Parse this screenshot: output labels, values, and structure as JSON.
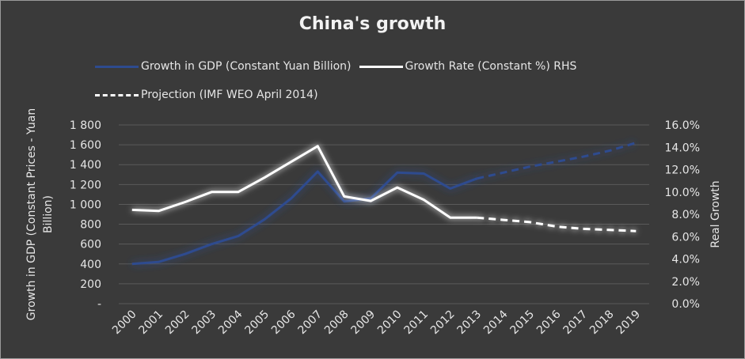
{
  "chart_data": {
    "type": "line",
    "title": "China's growth",
    "categories": [
      "2000",
      "2001",
      "2002",
      "2003",
      "2004",
      "2005",
      "2006",
      "2007",
      "2008",
      "2009",
      "2010",
      "2011",
      "2012",
      "2013",
      "2014",
      "2015",
      "2016",
      "2017",
      "2018",
      "2019"
    ],
    "y_left": {
      "label": "Growth in GDP (Constant Prices - Yuan Billion)",
      "range": [
        0,
        1800
      ],
      "ticks": [
        "-",
        "200",
        "400",
        "600",
        "800",
        "1 000",
        "1 200",
        "1 400",
        "1 600",
        "1 800"
      ],
      "tick_values": [
        0,
        200,
        400,
        600,
        800,
        1000,
        1200,
        1400,
        1600,
        1800
      ]
    },
    "y_right": {
      "label": "Real Growth",
      "range": [
        0,
        16
      ],
      "ticks": [
        "0.0%",
        "2.0%",
        "4.0%",
        "6.0%",
        "8.0%",
        "10.0%",
        "12.0%",
        "14.0%",
        "16.0%"
      ],
      "tick_values": [
        0,
        2,
        4,
        6,
        8,
        10,
        12,
        14,
        16
      ]
    },
    "series": [
      {
        "name": "Growth in GDP (Constant Yuan Billion)",
        "axis": "left",
        "color": "#2e4b8f",
        "values": [
          400,
          420,
          500,
          600,
          680,
          850,
          1060,
          1330,
          1030,
          1060,
          1320,
          1310,
          1160,
          1260,
          1320,
          1380,
          1430,
          1480,
          1540,
          1620
        ],
        "projection_from": "2013"
      },
      {
        "name": "Growth Rate (Constant %) RHS",
        "axis": "right",
        "color": "#ffffff",
        "values": [
          8.4,
          8.3,
          9.1,
          10.0,
          10.0,
          11.3,
          12.7,
          14.1,
          9.6,
          9.2,
          10.4,
          9.3,
          7.7,
          7.7,
          7.5,
          7.3,
          6.9,
          6.7,
          6.6,
          6.5
        ],
        "projection_from": "2013"
      }
    ],
    "projection_label": "Projection (IMF WEO April 2014)",
    "grid": "horizontal",
    "legend": "top"
  }
}
